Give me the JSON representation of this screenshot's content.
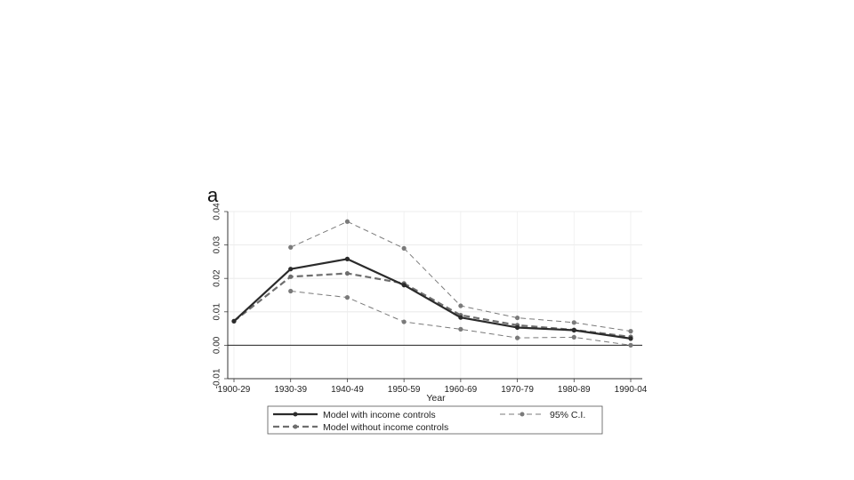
{
  "panel_label": "a",
  "chart_data": {
    "type": "line",
    "categories": [
      "1900-29",
      "1930-39",
      "1940-49",
      "1950-59",
      "1960-69",
      "1970-79",
      "1980-89",
      "1990-04"
    ],
    "xlabel": "Year",
    "ylabel": "",
    "ylim": [
      -0.01,
      0.04
    ],
    "yticks": [
      "-0.01",
      "0.00",
      "0.01",
      "0.02",
      "0.03",
      "0.04"
    ],
    "ytick_values": [
      -0.01,
      0.0,
      0.01,
      0.02,
      0.03,
      0.04
    ],
    "grid": true,
    "legend_placement": "bottom",
    "series": [
      {
        "name": "Model with income controls",
        "style": "solid",
        "color": "#2b2b2b",
        "values": [
          0.0072,
          0.0228,
          0.0258,
          0.018,
          0.0083,
          0.0053,
          0.0045,
          0.002
        ]
      },
      {
        "name": "Model without income controls",
        "style": "dashed",
        "color": "#6e6e6e",
        "values": [
          0.0072,
          0.0205,
          0.0215,
          0.0185,
          0.009,
          0.006,
          0.0046,
          0.0025
        ]
      },
      {
        "name": "95% C.I.",
        "style": "dashed-thin",
        "color": "#7a7a7a",
        "values": [
          null,
          0.0293,
          0.037,
          0.029,
          0.0118,
          0.0082,
          0.0068,
          0.0042
        ]
      },
      {
        "name": "",
        "style": "dashed-thin",
        "color": "#7a7a7a",
        "values": [
          null,
          0.0162,
          0.0143,
          0.007,
          0.0048,
          0.0022,
          0.0024,
          0.0
        ]
      }
    ]
  }
}
